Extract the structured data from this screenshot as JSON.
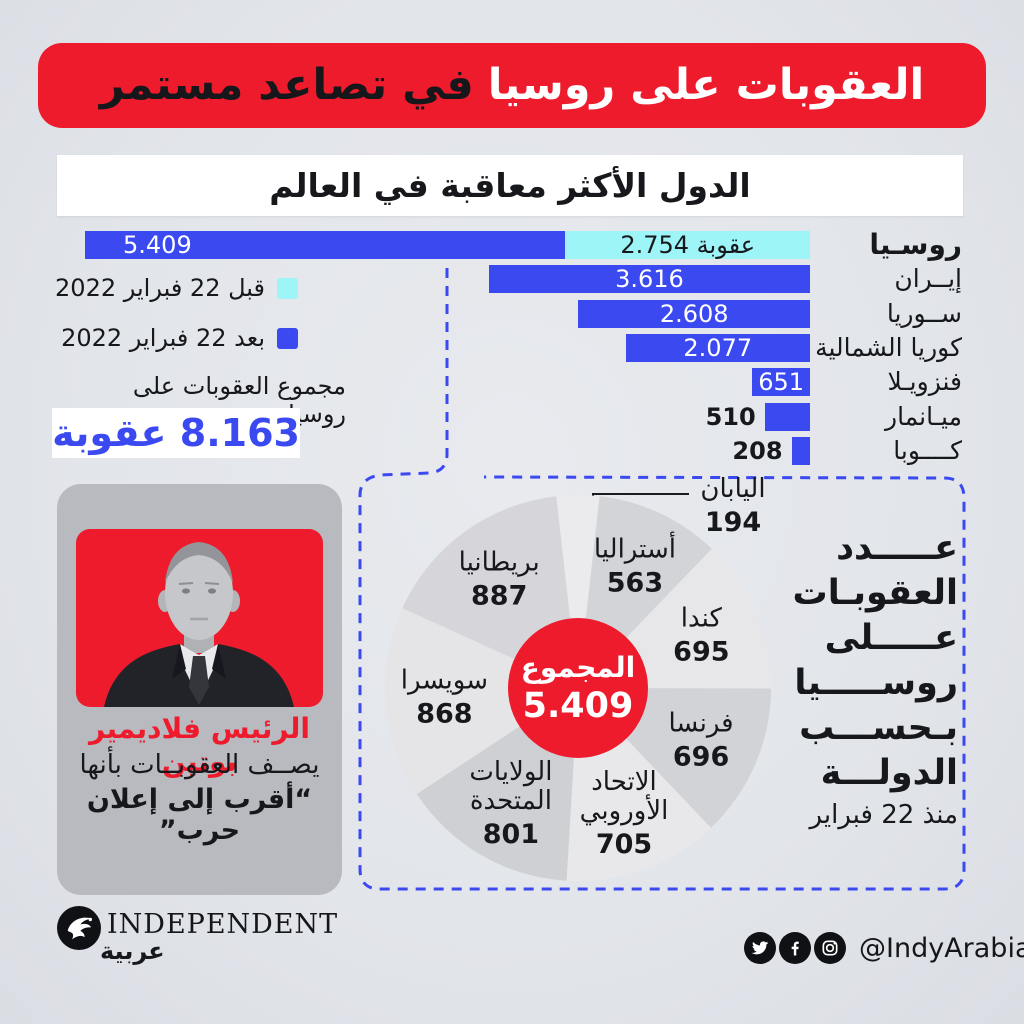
{
  "colors": {
    "red": "#ee1b2d",
    "blue": "#3b4af0",
    "cyan": "#9df5f7",
    "background": "#e2e5ea",
    "card_gray": "#b9bac0",
    "text_dark": "#17181c",
    "pie_slices": [
      "#ebebee",
      "#d3d4d8",
      "#e7e7ea",
      "#d2d3d7",
      "#e8e8eb",
      "#cfd0d4",
      "#e5e5e8",
      "#d6d6da"
    ]
  },
  "header": {
    "title_highlight": "العقوبات على روسيا",
    "title_rest": "في تصاعد مستمر"
  },
  "chart_data": [
    {
      "type": "bar",
      "orientation": "horizontal",
      "title": "الدول الأكثر معاقبة في العالم",
      "categories": [
        "روسـيا",
        "إيــران",
        "ســوريا",
        "كوريا الشمالية",
        "فنزويـلا",
        "ميـانمار",
        "كــــوبا"
      ],
      "series": [
        {
          "name": "قبل 22 فبراير 2022",
          "values": [
            2754,
            0,
            0,
            0,
            0,
            0,
            0
          ]
        },
        {
          "name": "بعد 22 فبراير 2022",
          "values": [
            5409,
            3616,
            2608,
            2077,
            651,
            510,
            208
          ]
        }
      ],
      "values_display": [
        "5.409",
        "3.616",
        "2.608",
        "2.077",
        "651",
        "510",
        "208"
      ],
      "before_display": "2.754 عقوبة",
      "xlim": [
        0,
        8163
      ],
      "legend_position": "left",
      "annotations": {
        "caption": "مجموع العقوبات على روسيا:",
        "value": "8.163 عقوبة"
      }
    },
    {
      "type": "pie",
      "title": "عدد العقوبات على روسيا بحسب الدولة",
      "subtitle": "منذ 22 فبراير",
      "labels": [
        "اليابان",
        "أستراليا",
        "كندا",
        "فرنسا",
        "الاتحاد الأوروبي",
        "الولايات المتحدة",
        "سويسرا",
        "بريطانيا"
      ],
      "values": [
        194,
        563,
        695,
        696,
        705,
        801,
        868,
        887
      ],
      "display_values": [
        "194",
        "563",
        "695",
        "696",
        "705",
        "801",
        "868",
        "887"
      ],
      "center_label": "المجموع",
      "center_value": "5.409",
      "start_angle_deg": -6.5
    }
  ],
  "putin_card": {
    "name": "الرئيس فلاديمير بوتين",
    "line2": "يصــف العقوبــات بأنها",
    "line3": "“أقرب إلى إعلان حرب”"
  },
  "pie_panel": {
    "heading_lines": [
      "عـــــدد",
      "العقوبـات",
      "عـــــلى",
      "روســـــيا",
      "بـحســـب",
      "الدولـــة"
    ],
    "subheading": "منذ 22 فبراير"
  },
  "footer": {
    "brand_name": "INDEPENDENT",
    "brand_arabic": "عربية",
    "social_handle": "@IndyArabia"
  }
}
